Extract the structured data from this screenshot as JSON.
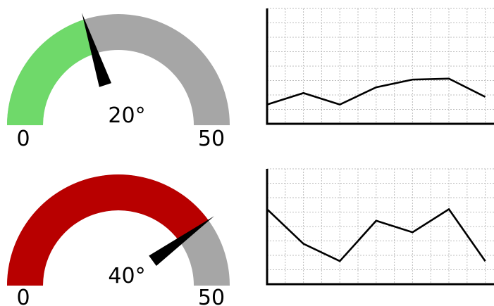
{
  "gauges": [
    {
      "value": 20,
      "min": 0,
      "max": 50,
      "value_label": "20°",
      "min_label": "0",
      "max_label": "50",
      "fill_color": "#6fd96a",
      "track_color": "#a6a6a6"
    },
    {
      "value": 40,
      "min": 0,
      "max": 50,
      "value_label": "40°",
      "min_label": "0",
      "max_label": "50",
      "fill_color": "#b80000",
      "track_color": "#a6a6a6"
    }
  ],
  "chart_data": [
    {
      "type": "line",
      "values": [
        -1.0,
        -0.4,
        -1.0,
        -0.1,
        0.3,
        0.35,
        -0.6
      ],
      "ylim": [
        -2.0,
        4.0
      ],
      "grid": true,
      "line_color": "#000000"
    },
    {
      "type": "line",
      "values": [
        0.3,
        -0.3,
        -0.6,
        0.1,
        -0.1,
        0.3,
        -0.6
      ],
      "ylim": [
        -1.0,
        1.0
      ],
      "grid": true,
      "line_color": "#000000"
    }
  ]
}
